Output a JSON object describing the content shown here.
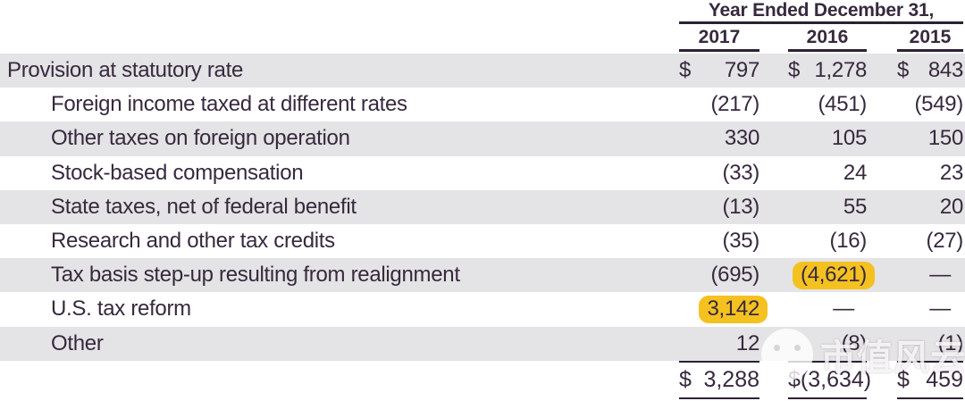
{
  "colors": {
    "ink": "#37293E",
    "rule": "#2B2135",
    "row_shade": "#E4E3E5",
    "highlight": "#F4C120",
    "background": "#FFFFFF"
  },
  "table": {
    "header": {
      "title": "Year Ended December 31,",
      "years": [
        "2017",
        "2016",
        "2015"
      ]
    },
    "rows": [
      {
        "label": "Provision at statutory rate",
        "indent": false,
        "shaded": true,
        "cells": [
          {
            "currency": "$",
            "value": "797"
          },
          {
            "currency": "$",
            "value": "1,278"
          },
          {
            "currency": "$",
            "value": "843"
          }
        ]
      },
      {
        "label": "Foreign income taxed at different rates",
        "indent": true,
        "shaded": false,
        "cells": [
          {
            "value": "(217)"
          },
          {
            "value": "(451)"
          },
          {
            "value": "(549)"
          }
        ]
      },
      {
        "label": "Other taxes on foreign operation",
        "indent": true,
        "shaded": true,
        "cells": [
          {
            "value": "330"
          },
          {
            "value": "105"
          },
          {
            "value": "150"
          }
        ]
      },
      {
        "label": "Stock-based compensation",
        "indent": true,
        "shaded": false,
        "cells": [
          {
            "value": "(33)"
          },
          {
            "value": "24"
          },
          {
            "value": "23"
          }
        ]
      },
      {
        "label": "State taxes, net of federal benefit",
        "indent": true,
        "shaded": true,
        "cells": [
          {
            "value": "(13)"
          },
          {
            "value": "55"
          },
          {
            "value": "20"
          }
        ]
      },
      {
        "label": "Research and other tax credits",
        "indent": true,
        "shaded": false,
        "cells": [
          {
            "value": "(35)"
          },
          {
            "value": "(16)"
          },
          {
            "value": "(27)"
          }
        ]
      },
      {
        "label": "Tax basis step-up resulting from realignment",
        "indent": true,
        "shaded": true,
        "cells": [
          {
            "value": "(695)"
          },
          {
            "value": "(4,621)",
            "highlight": true
          },
          {
            "value": "—",
            "dash": true
          }
        ]
      },
      {
        "label": "U.S. tax reform",
        "indent": true,
        "shaded": false,
        "cells": [
          {
            "value": "3,142",
            "highlight": true
          },
          {
            "value": "—",
            "dash": true
          },
          {
            "value": "—",
            "dash": true
          }
        ]
      },
      {
        "label": "Other",
        "indent": true,
        "shaded": true,
        "cells": [
          {
            "value": "12"
          },
          {
            "value": "(8)"
          },
          {
            "value": "(1)"
          }
        ]
      }
    ],
    "total_row": {
      "cells": [
        {
          "currency": "$",
          "value": "3,288"
        },
        {
          "currency": "$",
          "value": "(3,634)"
        },
        {
          "currency": "$",
          "value": "459"
        }
      ]
    }
  },
  "watermark": {
    "logo": "cloud-face-logo",
    "text": "市值风云"
  }
}
